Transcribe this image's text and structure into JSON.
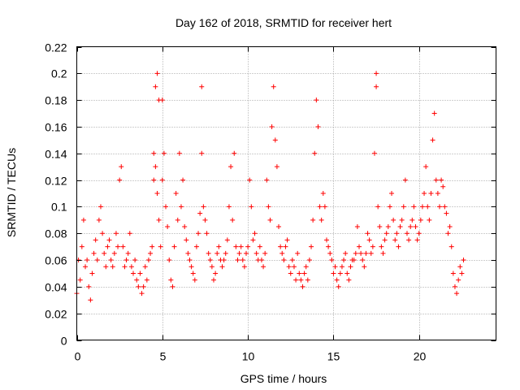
{
  "chart_data": {
    "type": "scatter",
    "title": "Day 162 of 2018, SRMTID for receiver hert",
    "xlabel": "GPS time / hours",
    "ylabel": "SRMTID / TECUs",
    "xlim": [
      0,
      24.5
    ],
    "ylim": [
      0,
      0.22
    ],
    "xticks": [
      0,
      5,
      10,
      15,
      20
    ],
    "xtick_labels": [
      "0",
      "5",
      "10",
      "15",
      "20"
    ],
    "yticks": [
      0,
      0.02,
      0.04,
      0.06,
      0.08,
      0.1,
      0.12,
      0.14,
      0.16,
      0.18,
      0.2,
      0.22
    ],
    "ytick_labels": [
      "0",
      "0.02",
      "0.04",
      "0.06",
      "0.08",
      "0.1",
      "0.12",
      "0.14",
      "0.16",
      "0.18",
      "0.2",
      "0.22"
    ],
    "grid": true,
    "marker": "+",
    "marker_color": "#ff0000",
    "series": [
      {
        "name": "SRMTID",
        "x": [
          0.0,
          0.1,
          0.2,
          0.3,
          0.4,
          0.5,
          0.6,
          0.7,
          0.8,
          0.9,
          1.0,
          1.1,
          1.2,
          1.3,
          1.4,
          1.5,
          1.6,
          1.7,
          1.8,
          1.9,
          2.0,
          2.1,
          2.2,
          2.3,
          2.4,
          2.5,
          2.6,
          2.7,
          2.8,
          2.9,
          3.0,
          3.1,
          3.2,
          3.3,
          3.4,
          3.5,
          3.6,
          3.7,
          3.8,
          3.9,
          4.0,
          4.1,
          4.2,
          4.3,
          4.4,
          4.5,
          4.5,
          4.6,
          4.6,
          4.7,
          4.7,
          4.8,
          4.8,
          4.9,
          5.0,
          5.0,
          5.1,
          5.2,
          5.3,
          5.4,
          5.5,
          5.6,
          5.7,
          5.8,
          5.9,
          6.0,
          6.1,
          6.2,
          6.3,
          6.4,
          6.5,
          6.6,
          6.7,
          6.8,
          6.9,
          7.0,
          7.1,
          7.2,
          7.3,
          7.3,
          7.4,
          7.5,
          7.6,
          7.7,
          7.8,
          7.9,
          8.0,
          8.1,
          8.2,
          8.3,
          8.4,
          8.5,
          8.6,
          8.7,
          8.8,
          8.9,
          9.0,
          9.1,
          9.2,
          9.3,
          9.4,
          9.5,
          9.6,
          9.7,
          9.8,
          9.9,
          10.0,
          10.1,
          10.2,
          10.3,
          10.4,
          10.5,
          10.6,
          10.7,
          10.8,
          10.9,
          11.0,
          11.1,
          11.2,
          11.3,
          11.4,
          11.5,
          11.6,
          11.7,
          11.8,
          11.9,
          12.0,
          12.1,
          12.2,
          12.3,
          12.4,
          12.5,
          12.6,
          12.7,
          12.8,
          12.9,
          13.0,
          13.1,
          13.2,
          13.3,
          13.4,
          13.5,
          13.6,
          13.7,
          13.8,
          13.9,
          14.0,
          14.1,
          14.2,
          14.3,
          14.4,
          14.5,
          14.6,
          14.7,
          14.8,
          14.9,
          15.0,
          15.1,
          15.2,
          15.3,
          15.4,
          15.5,
          15.6,
          15.7,
          15.8,
          15.9,
          16.0,
          16.1,
          16.2,
          16.3,
          16.4,
          16.5,
          16.6,
          16.7,
          16.8,
          16.9,
          17.0,
          17.1,
          17.2,
          17.3,
          17.4,
          17.5,
          17.5,
          17.6,
          17.7,
          17.8,
          17.9,
          18.0,
          18.1,
          18.2,
          18.3,
          18.4,
          18.5,
          18.6,
          18.7,
          18.8,
          18.9,
          19.0,
          19.1,
          19.2,
          19.3,
          19.4,
          19.5,
          19.6,
          19.7,
          19.8,
          19.9,
          20.0,
          20.1,
          20.2,
          20.3,
          20.4,
          20.5,
          20.6,
          20.7,
          20.8,
          20.9,
          21.0,
          21.1,
          21.2,
          21.3,
          21.4,
          21.5,
          21.6,
          21.7,
          21.8,
          21.9,
          22.0,
          22.1,
          22.2,
          22.3,
          22.4,
          22.5,
          22.6
        ],
        "y": [
          0.035,
          0.06,
          0.045,
          0.07,
          0.09,
          0.055,
          0.06,
          0.04,
          0.03,
          0.05,
          0.065,
          0.075,
          0.06,
          0.09,
          0.1,
          0.08,
          0.065,
          0.055,
          0.07,
          0.075,
          0.06,
          0.055,
          0.065,
          0.08,
          0.07,
          0.12,
          0.13,
          0.07,
          0.055,
          0.06,
          0.065,
          0.08,
          0.055,
          0.05,
          0.06,
          0.045,
          0.04,
          0.05,
          0.035,
          0.04,
          0.055,
          0.045,
          0.06,
          0.065,
          0.07,
          0.12,
          0.14,
          0.19,
          0.13,
          0.2,
          0.11,
          0.18,
          0.09,
          0.07,
          0.12,
          0.18,
          0.14,
          0.1,
          0.085,
          0.06,
          0.045,
          0.04,
          0.07,
          0.11,
          0.09,
          0.14,
          0.1,
          0.12,
          0.085,
          0.075,
          0.065,
          0.06,
          0.055,
          0.05,
          0.045,
          0.07,
          0.08,
          0.095,
          0.14,
          0.19,
          0.1,
          0.09,
          0.08,
          0.065,
          0.06,
          0.055,
          0.045,
          0.05,
          0.065,
          0.07,
          0.06,
          0.055,
          0.06,
          0.065,
          0.075,
          0.1,
          0.13,
          0.09,
          0.14,
          0.07,
          0.06,
          0.065,
          0.07,
          0.06,
          0.055,
          0.065,
          0.07,
          0.12,
          0.1,
          0.075,
          0.08,
          0.065,
          0.06,
          0.07,
          0.06,
          0.055,
          0.065,
          0.12,
          0.1,
          0.09,
          0.16,
          0.19,
          0.15,
          0.13,
          0.085,
          0.07,
          0.065,
          0.06,
          0.07,
          0.075,
          0.055,
          0.05,
          0.06,
          0.055,
          0.045,
          0.065,
          0.05,
          0.045,
          0.04,
          0.05,
          0.055,
          0.045,
          0.06,
          0.07,
          0.09,
          0.14,
          0.18,
          0.16,
          0.1,
          0.09,
          0.11,
          0.1,
          0.075,
          0.07,
          0.065,
          0.06,
          0.05,
          0.055,
          0.045,
          0.04,
          0.05,
          0.055,
          0.06,
          0.065,
          0.05,
          0.045,
          0.055,
          0.06,
          0.06,
          0.065,
          0.085,
          0.07,
          0.065,
          0.06,
          0.055,
          0.065,
          0.08,
          0.075,
          0.065,
          0.07,
          0.14,
          0.19,
          0.2,
          0.1,
          0.085,
          0.07,
          0.065,
          0.075,
          0.08,
          0.085,
          0.1,
          0.11,
          0.09,
          0.075,
          0.08,
          0.07,
          0.085,
          0.09,
          0.1,
          0.12,
          0.08,
          0.075,
          0.085,
          0.09,
          0.1,
          0.085,
          0.075,
          0.08,
          0.09,
          0.1,
          0.11,
          0.13,
          0.1,
          0.09,
          0.11,
          0.15,
          0.17,
          0.12,
          0.11,
          0.1,
          0.12,
          0.115,
          0.1,
          0.095,
          0.08,
          0.085,
          0.07,
          0.05,
          0.04,
          0.035,
          0.045,
          0.055,
          0.05,
          0.06
        ]
      }
    ]
  }
}
